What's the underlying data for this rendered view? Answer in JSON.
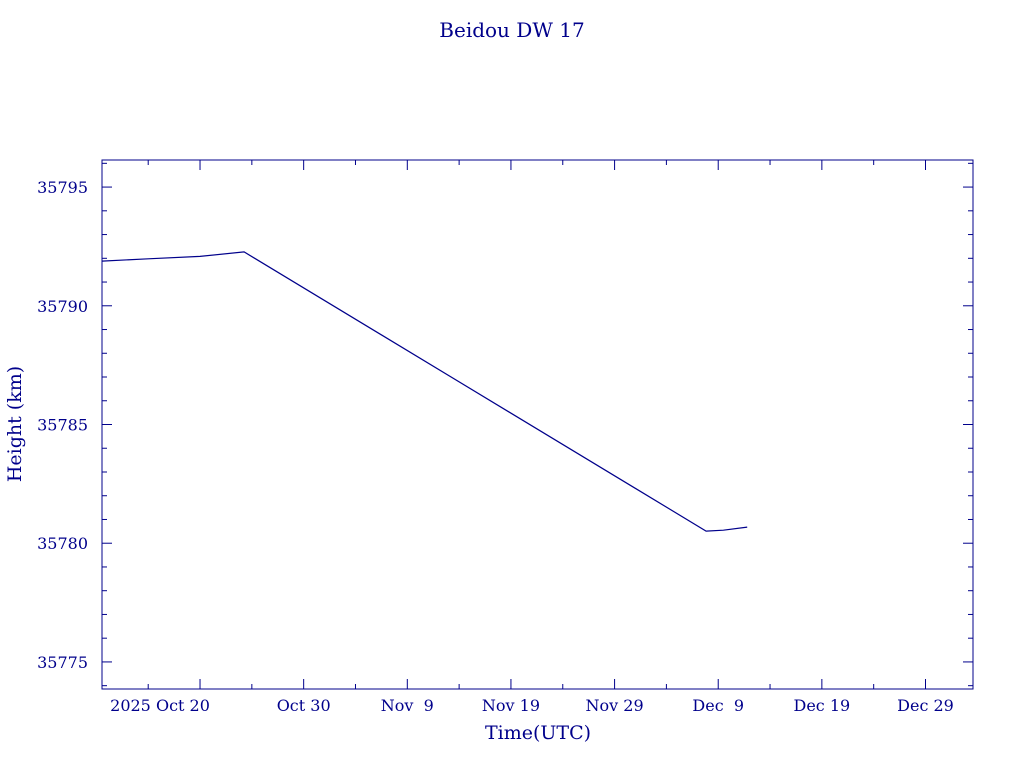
{
  "chart_data": {
    "type": "line",
    "title": "Beidou DW 17",
    "xlabel": "Time(UTC)",
    "ylabel": "Height (km)",
    "color": "#00008B",
    "xlim": [
      "2025-10-10T13:00",
      "2026-01-02T14:00"
    ],
    "ylim": [
      35773.86,
      35796.14
    ],
    "grid": false,
    "x_tick_labels": [
      {
        "date": "2025-10-20",
        "label": "2025 Oct 20"
      },
      {
        "date": "2025-10-30",
        "label": "Oct 30"
      },
      {
        "date": "2025-11-09",
        "label": "Nov  9"
      },
      {
        "date": "2025-11-19",
        "label": "Nov 19"
      },
      {
        "date": "2025-11-29",
        "label": "Nov 29"
      },
      {
        "date": "2025-12-09",
        "label": "Dec  9"
      },
      {
        "date": "2025-12-19",
        "label": "Dec 19"
      },
      {
        "date": "2025-12-29",
        "label": "Dec 29"
      }
    ],
    "y_tick_labels": [
      "35775",
      "35780",
      "35785",
      "35790",
      "35795"
    ],
    "y_ticks": [
      35775,
      35780,
      35785,
      35790,
      35795
    ],
    "series": [
      {
        "points": [
          {
            "x": "2025-10-10T13:00",
            "y": 35791.88
          },
          {
            "x": "2025-10-15T00:00",
            "y": 35791.98
          },
          {
            "x": "2025-10-20T00:00",
            "y": 35792.08
          },
          {
            "x": "2025-10-24T06:00",
            "y": 35792.27
          },
          {
            "x": "2025-12-07T20:00",
            "y": 35780.51
          },
          {
            "x": "2025-12-09T12:00",
            "y": 35780.55
          },
          {
            "x": "2025-12-11T19:00",
            "y": 35780.68
          }
        ]
      }
    ]
  }
}
